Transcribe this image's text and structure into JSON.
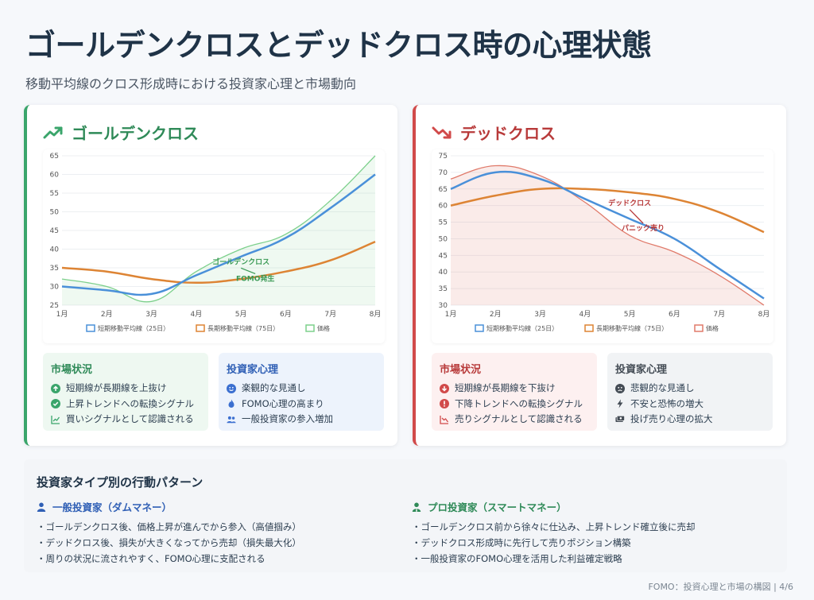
{
  "title": "ゴールデンクロスとデッドクロス時の心理状態",
  "subtitle": "移動平均線のクロス形成時における投資家心理と市場動向",
  "colors": {
    "golden": "#3aa56b",
    "dead": "#d14a4a",
    "short_ma": "#4a90d9",
    "long_ma": "#dd8434",
    "price_gc": "#7dd08c",
    "price_dc": "#e07a6a"
  },
  "golden_card": {
    "heading": "ゴールデンクロス",
    "icon": "trend-up-icon",
    "market": {
      "title": "市場状況",
      "items": [
        {
          "icon": "arrow-up-circle-icon",
          "text": "短期線が長期線を上抜け"
        },
        {
          "icon": "check-circle-icon",
          "text": "上昇トレンドへの転換シグナル"
        },
        {
          "icon": "chart-line-icon",
          "text": "買いシグナルとして認識される"
        }
      ]
    },
    "psychology": {
      "title": "投資家心理",
      "items": [
        {
          "icon": "smile-icon",
          "text": "楽観的な見通し"
        },
        {
          "icon": "fire-icon",
          "text": "FOMO心理の高まり"
        },
        {
          "icon": "users-icon",
          "text": "一般投資家の参入増加"
        }
      ]
    }
  },
  "dead_card": {
    "heading": "デッドクロス",
    "icon": "trend-down-icon",
    "market": {
      "title": "市場状況",
      "items": [
        {
          "icon": "arrow-down-circle-icon",
          "text": "短期線が長期線を下抜け"
        },
        {
          "icon": "exclamation-circle-icon",
          "text": "下降トレンドへの転換シグナル"
        },
        {
          "icon": "chart-line-icon",
          "text": "売りシグナルとして認識される"
        }
      ]
    },
    "psychology": {
      "title": "投資家心理",
      "items": [
        {
          "icon": "frown-icon",
          "text": "悲観的な見通し"
        },
        {
          "icon": "bolt-icon",
          "text": "不安と恐怖の増大"
        },
        {
          "icon": "money-icon",
          "text": "投げ売り心理の拡大"
        }
      ]
    }
  },
  "chart_data": [
    {
      "type": "line",
      "x": [
        "1月",
        "2月",
        "3月",
        "4月",
        "5月",
        "6月",
        "7月",
        "8月"
      ],
      "ylim": [
        25,
        65
      ],
      "yticks": [
        25,
        30,
        35,
        40,
        45,
        50,
        55,
        60,
        65
      ],
      "series": [
        {
          "name": "短期移動平均線（25日）",
          "values": [
            30,
            29,
            28,
            33,
            38,
            43,
            51,
            60
          ]
        },
        {
          "name": "長期移動平均線（75日）",
          "values": [
            35,
            34,
            32,
            31,
            32,
            34,
            37,
            42
          ]
        },
        {
          "name": "価格",
          "values": [
            32,
            30,
            26,
            34,
            40,
            44,
            53,
            65
          ],
          "filled": true
        }
      ],
      "annotations": [
        {
          "text": "ゴールデンクロス",
          "x_index": 4,
          "y": 36
        },
        {
          "text": "FOMO発生",
          "x_index": 4,
          "y": 31.5
        }
      ],
      "legend_position": "bottom",
      "grid": true
    },
    {
      "type": "line",
      "x": [
        "1月",
        "2月",
        "3月",
        "4月",
        "5月",
        "6月",
        "7月",
        "8月"
      ],
      "ylim": [
        30,
        75
      ],
      "yticks": [
        30,
        35,
        40,
        45,
        50,
        55,
        60,
        65,
        70,
        75
      ],
      "series": [
        {
          "name": "短期移動平均線（25日）",
          "values": [
            65,
            70,
            68,
            62,
            56,
            50,
            41,
            32
          ]
        },
        {
          "name": "長期移動平均線（75日）",
          "values": [
            60,
            63,
            65,
            65,
            64,
            62,
            58,
            52
          ]
        },
        {
          "name": "価格",
          "values": [
            68,
            72,
            69,
            61,
            51,
            46,
            39,
            30
          ],
          "filled": true
        }
      ],
      "annotations": [
        {
          "text": "デッドクロス",
          "x_index": 4,
          "y": 60
        },
        {
          "text": "パニック売り",
          "x_index": 4.3,
          "y": 52.5
        }
      ],
      "legend_position": "bottom",
      "grid": true
    }
  ],
  "investor_patterns": {
    "title": "投資家タイプ別の行動パターン",
    "retail": {
      "title": "一般投資家（ダムマネー）",
      "icon": "user-icon",
      "items": [
        "ゴールデンクロス後、価格上昇が進んでから参入（高値掴み）",
        "デッドクロス後、損失が大きくなってから売却（損失最大化）",
        "周りの状況に流されやすく、FOMO心理に支配される"
      ]
    },
    "pro": {
      "title": "プロ投資家（スマートマネー）",
      "icon": "user-tie-icon",
      "items": [
        "ゴールデンクロス前から徐々に仕込み、上昇トレンド確立後に売却",
        "デッドクロス形成時に先行して売りポジション構築",
        "一般投資家のFOMO心理を活用した利益確定戦略"
      ]
    }
  },
  "footer": "FOMO：投資心理と市場の構図 | 4/6"
}
